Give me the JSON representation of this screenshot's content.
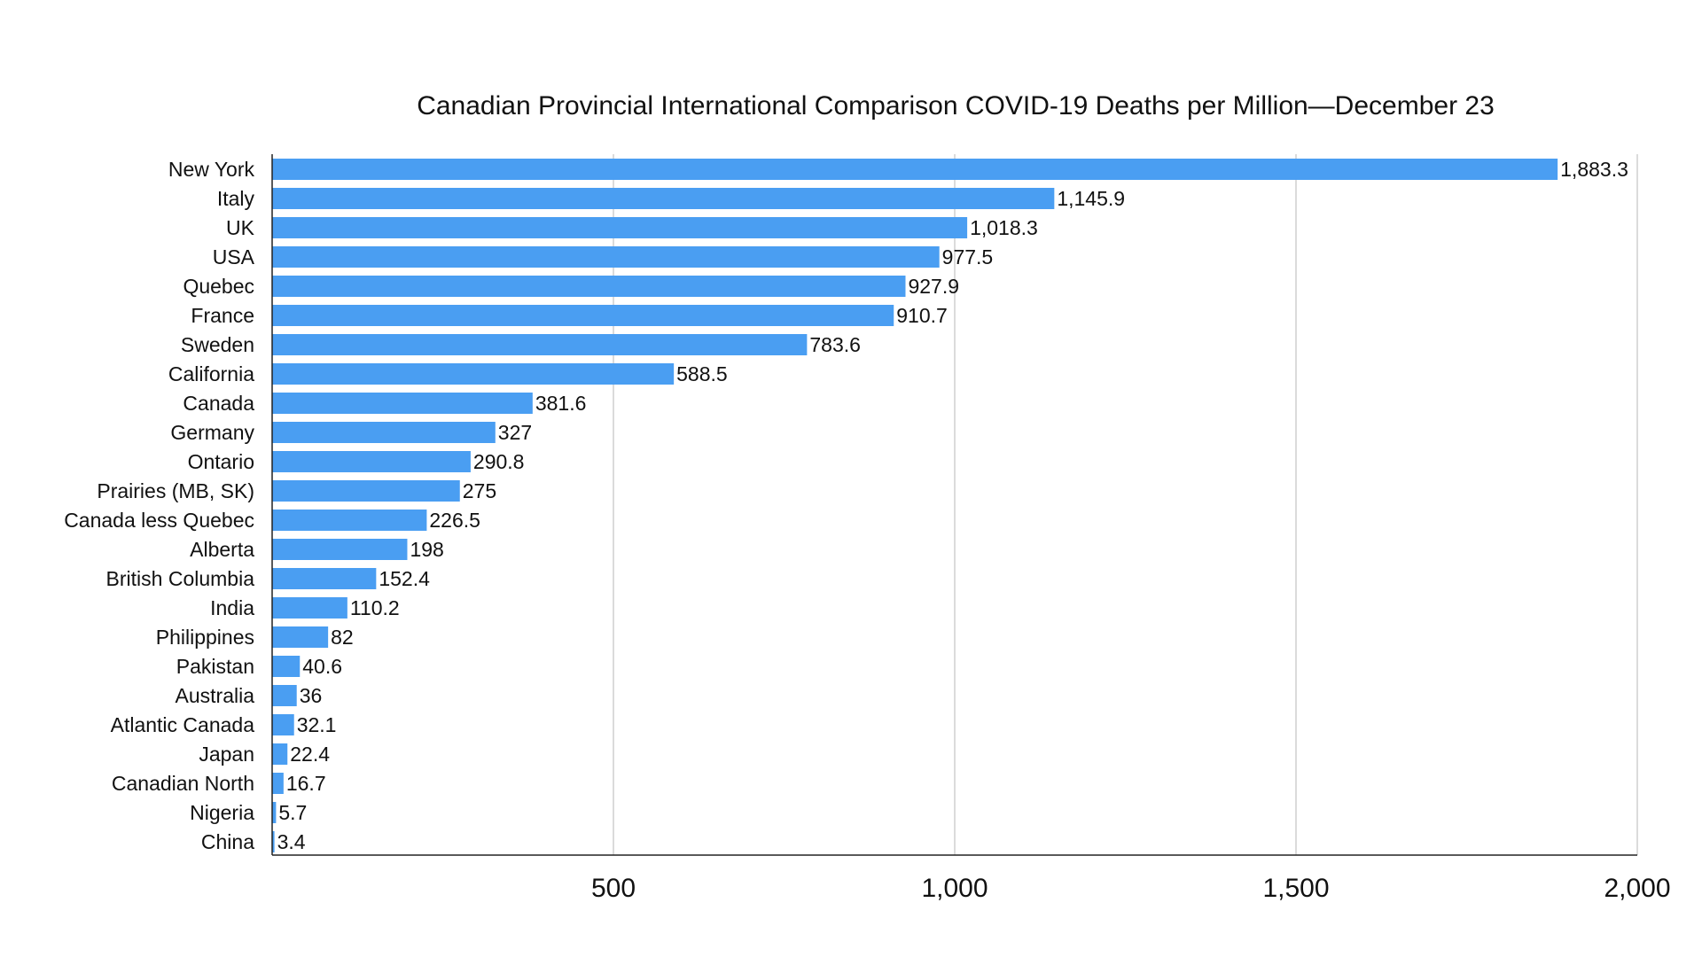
{
  "chart_data": {
    "type": "bar",
    "orientation": "horizontal",
    "title": "Canadian Provincial International Comparison COVID-19 Deaths per Million—December 23",
    "xlabel": "",
    "ylabel": "",
    "xlim": [
      0,
      2000
    ],
    "x_ticks": [
      500,
      1000,
      1500,
      2000
    ],
    "x_tick_labels": [
      "500",
      "1,000",
      "1,500",
      "2,000"
    ],
    "grid": true,
    "bar_color": "#4a9ef2",
    "categories": [
      "New York",
      "Italy",
      "UK",
      "USA",
      "Quebec",
      "France",
      "Sweden",
      "California",
      "Canada",
      "Germany",
      "Ontario",
      "Prairies (MB, SK)",
      "Canada less Quebec",
      "Alberta",
      "British Columbia",
      "India",
      "Philippines",
      "Pakistan",
      "Australia",
      "Atlantic Canada",
      "Japan",
      "Canadian North",
      "Nigeria",
      "China"
    ],
    "values": [
      1883.3,
      1145.9,
      1018.3,
      977.5,
      927.9,
      910.7,
      783.6,
      588.5,
      381.6,
      327,
      290.8,
      275,
      226.5,
      198,
      152.4,
      110.2,
      82,
      40.6,
      36,
      32.1,
      22.4,
      16.7,
      5.7,
      3.4
    ],
    "value_labels": [
      "1,883.3",
      "1,145.9",
      "1,018.3",
      "977.5",
      "927.9",
      "910.7",
      "783.6",
      "588.5",
      "381.6",
      "327",
      "290.8",
      "275",
      "226.5",
      "198",
      "152.4",
      "110.2",
      "82",
      "40.6",
      "36",
      "32.1",
      "22.4",
      "16.7",
      "5.7",
      "3.4"
    ]
  }
}
